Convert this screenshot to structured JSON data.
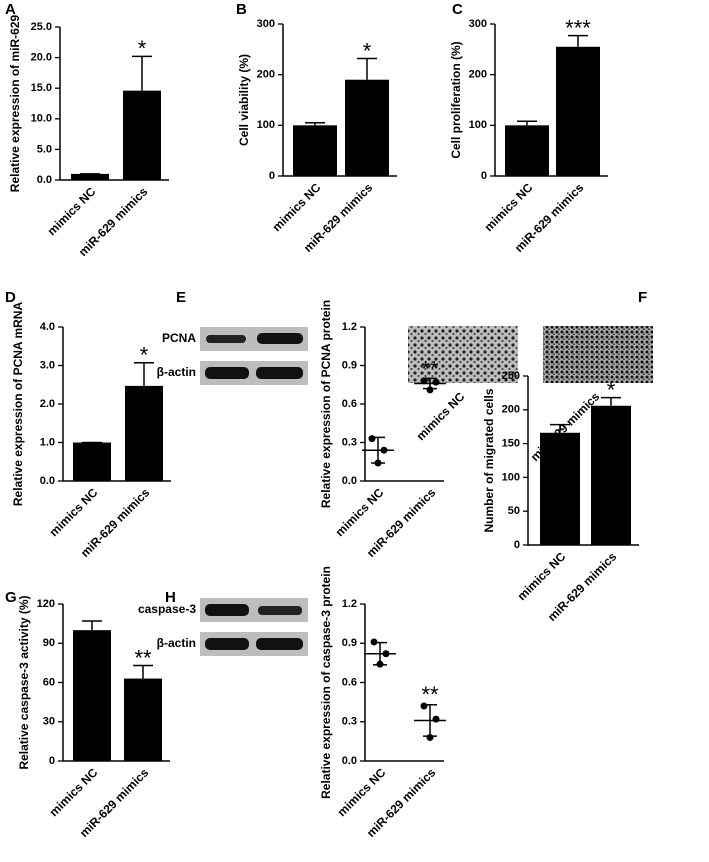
{
  "chart_data": [
    {
      "type": "bar",
      "panel_label": "A",
      "ylabel": "Relative expression of miR-629",
      "categories": [
        "mimics NC",
        "miR-629 mimics"
      ],
      "values": [
        1,
        14.6
      ],
      "errors": [
        0,
        5.6
      ],
      "color": "#000000",
      "ylim": [
        0,
        25
      ],
      "yticks": [
        {
          "value": 0,
          "label": "0.0"
        },
        {
          "value": 5,
          "label": "5.0"
        },
        {
          "value": 10,
          "label": "10.0"
        },
        {
          "value": 15,
          "label": "15.0"
        },
        {
          "value": 20,
          "label": "20.0"
        },
        {
          "value": 25,
          "label": "25.0"
        }
      ],
      "annotation": "*"
    },
    {
      "type": "bar",
      "panel_label": "B",
      "ylabel": "Cell viability (%)",
      "categories": [
        "mimics NC",
        "miR-629 mimics"
      ],
      "values": [
        100,
        190
      ],
      "errors": [
        5,
        42
      ],
      "color": "#000000",
      "ylim": [
        0,
        300
      ],
      "yticks": [
        0,
        100,
        200,
        300
      ],
      "annotation": "*"
    },
    {
      "type": "bar",
      "panel_label": "C",
      "ylabel": "Cell proliferation (%)",
      "categories": [
        "mimics NC",
        "miR-629 mimics"
      ],
      "values": [
        100,
        255
      ],
      "errors": [
        8,
        22
      ],
      "color": "#000000",
      "ylim": [
        0,
        300
      ],
      "yticks": [
        0,
        100,
        200,
        300
      ],
      "annotation": "***"
    },
    {
      "type": "bar",
      "panel_label": "D",
      "ylabel": "Relative expression of PCNA mRNA",
      "categories": [
        "mimics NC",
        "miR-629 mimics"
      ],
      "values": [
        1,
        2.47
      ],
      "errors": [
        0,
        0.6
      ],
      "color": "#000000",
      "ylim": [
        0,
        4
      ],
      "yticks": [
        {
          "value": 0,
          "label": "0.0"
        },
        {
          "value": 1,
          "label": "1.0"
        },
        {
          "value": 2,
          "label": "2.0"
        },
        {
          "value": 3,
          "label": "3.0"
        },
        {
          "value": 4,
          "label": "4.0"
        }
      ],
      "annotation": "*"
    },
    {
      "type": "scatter",
      "panel_label": "E",
      "ylabel": "Relative expression of PCNA protein",
      "blot_labels": [
        "PCNA",
        "β-actin"
      ],
      "categories": [
        "mimics NC",
        "miR-629 mimics"
      ],
      "points": [
        [
          0.33,
          0.24,
          0.14
        ],
        [
          0.78,
          0.77,
          0.71
        ]
      ],
      "values": [
        0.24,
        0.76
      ],
      "errors": [
        0.1,
        0.04
      ],
      "color": "#000000",
      "ylim": [
        0,
        1.2
      ],
      "yticks": [
        {
          "value": 0,
          "label": "0.0"
        },
        {
          "value": 0.3,
          "label": "0.3"
        },
        {
          "value": 0.6,
          "label": "0.6"
        },
        {
          "value": 0.9,
          "label": "0.9"
        },
        {
          "value": 1.2,
          "label": "1.2"
        }
      ],
      "annotation": "**"
    },
    {
      "type": "bar",
      "panel_label": "F",
      "ylabel": "Number of migrated cells",
      "image_labels": [
        "mimics NC",
        "miR-629 mimics"
      ],
      "categories": [
        "mimics NC",
        "miR-629 mimics"
      ],
      "values": [
        166,
        206
      ],
      "errors": [
        12,
        12
      ],
      "color": "#000000",
      "ylim": [
        0,
        250
      ],
      "yticks": [
        0,
        50,
        100,
        150,
        200,
        250
      ],
      "annotation": "*"
    },
    {
      "type": "bar",
      "panel_label": "G",
      "ylabel": "Relative caspase-3 activity (%)",
      "categories": [
        "mimics NC",
        "miR-629 mimics"
      ],
      "values": [
        100,
        63
      ],
      "errors": [
        7,
        10
      ],
      "color": "#000000",
      "ylim": [
        0,
        120
      ],
      "yticks": [
        0,
        30,
        60,
        90,
        120
      ],
      "annotation": "**"
    },
    {
      "type": "scatter",
      "panel_label": "H",
      "ylabel": "Relative expression of caspase-3 protein",
      "blot_labels": [
        "caspase-3",
        "β-actin"
      ],
      "categories": [
        "mimics NC",
        "miR-629 mimics"
      ],
      "points": [
        [
          0.91,
          0.82,
          0.74
        ],
        [
          0.42,
          0.32,
          0.18
        ]
      ],
      "values": [
        0.82,
        0.31
      ],
      "errors": [
        0.085,
        0.12
      ],
      "color": "#000000",
      "ylim": [
        0,
        1.2
      ],
      "yticks": [
        {
          "value": 0,
          "label": "0.0"
        },
        {
          "value": 0.3,
          "label": "0.3"
        },
        {
          "value": 0.6,
          "label": "0.6"
        },
        {
          "value": 0.9,
          "label": "0.9"
        },
        {
          "value": 1.2,
          "label": "1.2"
        }
      ],
      "annotation": "**"
    }
  ]
}
